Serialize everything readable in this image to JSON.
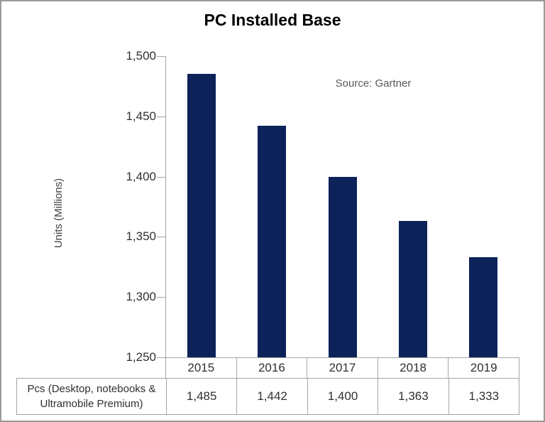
{
  "chart": {
    "title": "PC Installed Base",
    "source_note": "Source: Gartner",
    "y_axis_title": "Units (Millions)"
  },
  "chart_data": {
    "type": "bar",
    "title": "PC Installed Base",
    "categories": [
      "2015",
      "2016",
      "2017",
      "2018",
      "2019"
    ],
    "series": [
      {
        "name": "Pcs (Desktop, notebooks & Ultramobile Premium)",
        "values": [
          1485,
          1442,
          1400,
          1363,
          1333
        ]
      }
    ],
    "xlabel": "",
    "ylabel": "Units (Millions)",
    "ylim": [
      1250,
      1500
    ],
    "ytick_step": 50,
    "ytick_labels_top_to_bottom": [
      "1,500",
      "1,450",
      "1,400",
      "1,350",
      "1,300",
      "1,250"
    ],
    "grid": false,
    "legend": "none",
    "annotation": "Source: Gartner",
    "bar_color": "#0c2259",
    "data_table": {
      "row_label": "Pcs (Desktop, notebooks & Ultramobile Premium)",
      "row_label_lines": [
        "Pcs (Desktop, notebooks &",
        "Ultramobile Premium)"
      ],
      "values_formatted": [
        "1,485",
        "1,442",
        "1,400",
        "1,363",
        "1,333"
      ]
    }
  },
  "colors": {
    "bar": "#0c2259",
    "axis_and_table_lines": "#a6a6a6",
    "text": "#303030",
    "title_text": "#000000",
    "source_text": "#595959",
    "outer_border": "#9a9a9a",
    "background": "#ffffff"
  }
}
